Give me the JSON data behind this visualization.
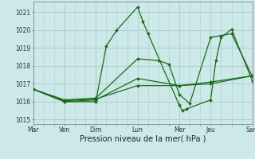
{
  "background_color": "#cce8e8",
  "grid_major_color": "#aacccc",
  "grid_minor_color": "#bbdddd",
  "line_color": "#1a6b1a",
  "ylim": [
    1014.75,
    1021.6
  ],
  "yticks": [
    1015,
    1016,
    1017,
    1018,
    1019,
    1020,
    1021
  ],
  "xlabel": "Pression niveau de la mer( hPa )",
  "day_labels": [
    "Mar",
    "Ven",
    "Dim",
    "Lun",
    "Mer",
    "Jeu",
    "Sam"
  ],
  "day_positions": [
    0,
    3,
    6,
    10,
    14,
    17,
    21
  ],
  "xlim": [
    0,
    21
  ],
  "s1_x": [
    0,
    3,
    6,
    7,
    8,
    10,
    10.5,
    11,
    14,
    14.3,
    14.7,
    17,
    17.5,
    18,
    19,
    21
  ],
  "s1_y": [
    1016.7,
    1016.0,
    1016.0,
    1019.1,
    1020.0,
    1021.3,
    1020.5,
    1019.8,
    1015.8,
    1015.5,
    1015.6,
    1016.1,
    1018.3,
    1019.6,
    1020.05,
    1017.15
  ],
  "s2_x": [
    0,
    3,
    6,
    10,
    12,
    13,
    14,
    15,
    17,
    18,
    19,
    21
  ],
  "s2_y": [
    1016.7,
    1016.1,
    1016.2,
    1018.4,
    1018.3,
    1018.1,
    1016.4,
    1015.9,
    1019.6,
    1019.7,
    1019.8,
    1017.4
  ],
  "s3_x": [
    0,
    3,
    6,
    10,
    14,
    17,
    21
  ],
  "s3_y": [
    1016.7,
    1016.0,
    1016.1,
    1017.3,
    1016.9,
    1017.1,
    1017.45
  ],
  "s4_x": [
    0,
    3,
    6,
    10,
    14,
    17,
    21
  ],
  "s4_y": [
    1016.7,
    1016.05,
    1016.15,
    1016.9,
    1016.9,
    1017.0,
    1017.45
  ],
  "line_width": 0.9,
  "marker": "D",
  "marker_size": 2.0,
  "tick_fontsize": 5.5,
  "xlabel_fontsize": 7.0
}
